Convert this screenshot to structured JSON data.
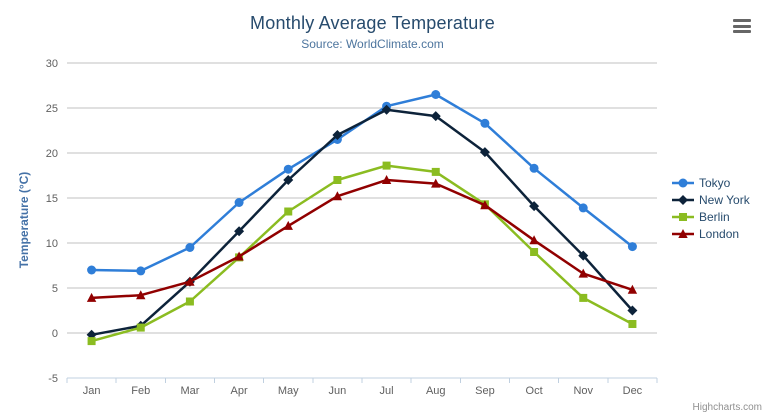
{
  "header": {
    "title": "Monthly Average Temperature",
    "subtitle": "Source: WorldClimate.com"
  },
  "credits_label": "Highcharts.com",
  "icons": {
    "context_menu": "hamburger-icon"
  },
  "colors": {
    "title_text": "#274b6d",
    "subtitle_text": "#4d759e",
    "axis_title_text": "#4572a7",
    "axis_label_text": "#606060",
    "grid_line": "#c0c0c0",
    "axis_line": "#c0d0e0",
    "credits_text": "#909090"
  },
  "chart_data": {
    "type": "line",
    "title": "Monthly Average Temperature",
    "subtitle": "Source: WorldClimate.com",
    "xlabel": "",
    "ylabel": "Temperature (°C)",
    "ylim": [
      -5,
      30
    ],
    "yticks": [
      -5,
      0,
      5,
      10,
      15,
      20,
      25,
      30
    ],
    "grid": true,
    "legend_position": "right",
    "categories": [
      "Jan",
      "Feb",
      "Mar",
      "Apr",
      "May",
      "Jun",
      "Jul",
      "Aug",
      "Sep",
      "Oct",
      "Nov",
      "Dec"
    ],
    "series": [
      {
        "name": "Tokyo",
        "color": "#2f7ed8",
        "marker": "circle",
        "values": [
          7.0,
          6.9,
          9.5,
          14.5,
          18.2,
          21.5,
          25.2,
          26.5,
          23.3,
          18.3,
          13.9,
          9.6
        ]
      },
      {
        "name": "New York",
        "color": "#0d233a",
        "marker": "diamond",
        "values": [
          -0.2,
          0.8,
          5.7,
          11.3,
          17.0,
          22.0,
          24.8,
          24.1,
          20.1,
          14.1,
          8.6,
          2.5
        ]
      },
      {
        "name": "Berlin",
        "color": "#8bbc21",
        "marker": "square",
        "values": [
          -0.9,
          0.6,
          3.5,
          8.4,
          13.5,
          17.0,
          18.6,
          17.9,
          14.3,
          9.0,
          3.9,
          1.0
        ]
      },
      {
        "name": "London",
        "color": "#910000",
        "marker": "triangle",
        "values": [
          3.9,
          4.2,
          5.7,
          8.5,
          11.9,
          15.2,
          17.0,
          16.6,
          14.2,
          10.3,
          6.6,
          4.8
        ]
      }
    ]
  }
}
